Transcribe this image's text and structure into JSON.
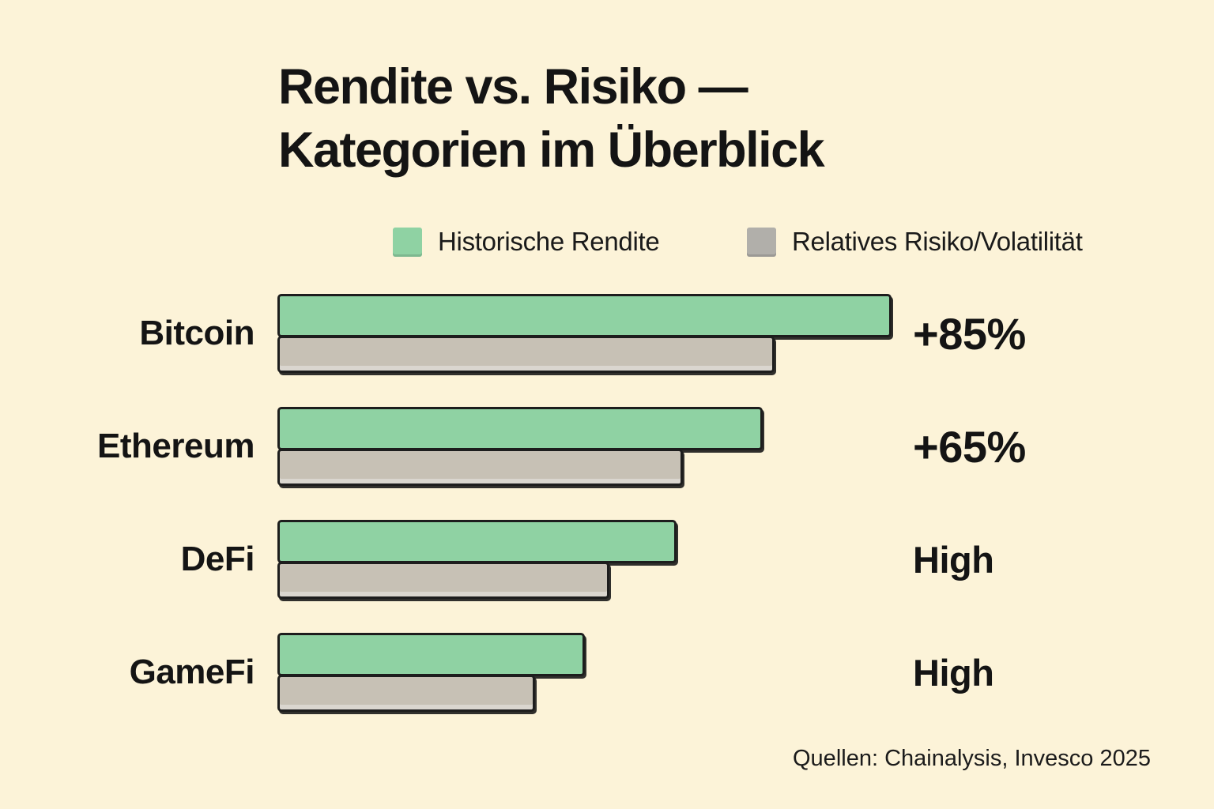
{
  "page": {
    "title_line1": "Rendite vs. Risiko —",
    "title_line2": "Kategorien im Überblick",
    "source": "Quellen: Chainalysis, Invesco 2025"
  },
  "colors": {
    "background": "#fcf3d8",
    "bar_green": "#8fd2a3",
    "bar_gray": "#c7c1b5",
    "legend_green": "#8fd2a3",
    "legend_gray": "#b1afaa",
    "border": "#1d1d1d",
    "text": "#141414"
  },
  "legend": {
    "items": [
      {
        "label": "Historische Rendite",
        "color": "#8fd2a3"
      },
      {
        "label": "Relatives Risiko/Volatilität",
        "color": "#b1afaa"
      }
    ]
  },
  "chart_data": {
    "type": "bar",
    "orientation": "horizontal",
    "title": "Rendite vs. Risiko — Kategorien im Überblick",
    "categories": [
      "Bitcoin",
      "Ethereum",
      "DeFi",
      "GameFi"
    ],
    "series": [
      {
        "name": "Historische Rendite",
        "color": "#8fd2a3",
        "values_relative": [
          100,
          79,
          65,
          50
        ]
      },
      {
        "name": "Relatives Risiko/Volatilität",
        "color": "#c7c1b5",
        "values_relative": [
          81,
          66,
          54,
          42
        ]
      }
    ],
    "value_labels": [
      "+85%",
      "+65%",
      "High",
      "High"
    ],
    "legend_position": "top",
    "axes": "none",
    "grid": false,
    "source": "Quellen: Chainalysis, Invesco 2025"
  }
}
